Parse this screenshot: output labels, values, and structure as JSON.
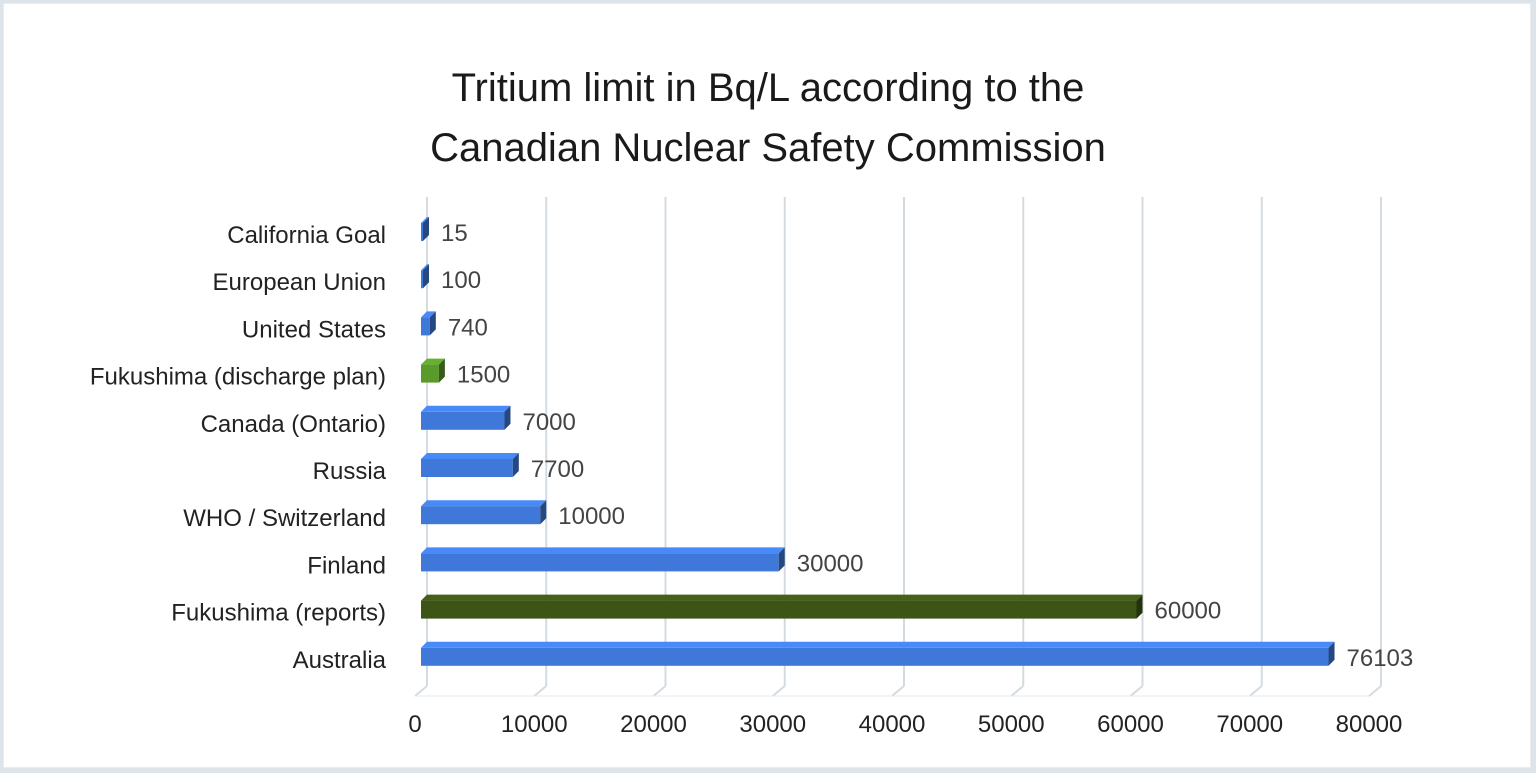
{
  "chart_data": {
    "type": "bar",
    "orientation": "horizontal",
    "title_lines": [
      "Tritium limit in Bq/L according to the",
      "Canadian Nuclear Safety Commission"
    ],
    "categories": [
      "California Goal",
      "European Union",
      "United States",
      "Fukushima (discharge plan)",
      "Canada (Ontario)",
      "Russia",
      "WHO / Switzerland",
      "Finland",
      "Fukushima (reports)",
      "Australia"
    ],
    "values": [
      15,
      100,
      740,
      1500,
      7000,
      7700,
      10000,
      30000,
      60000,
      76103
    ],
    "value_labels": [
      "15",
      "100",
      "740",
      "1500",
      "7000",
      "7700",
      "10000",
      "30000",
      "60000",
      "76103"
    ],
    "bar_colors": [
      "#3f78d8",
      "#3f78d8",
      "#3f78d8",
      "#5a9a2a",
      "#3f78d8",
      "#3f78d8",
      "#3f78d8",
      "#3f78d8",
      "#3c5416",
      "#3f78d8"
    ],
    "xlim": [
      0,
      80000
    ],
    "xticks": [
      0,
      10000,
      20000,
      30000,
      40000,
      50000,
      60000,
      70000,
      80000
    ],
    "grid": true,
    "legend": "none"
  }
}
